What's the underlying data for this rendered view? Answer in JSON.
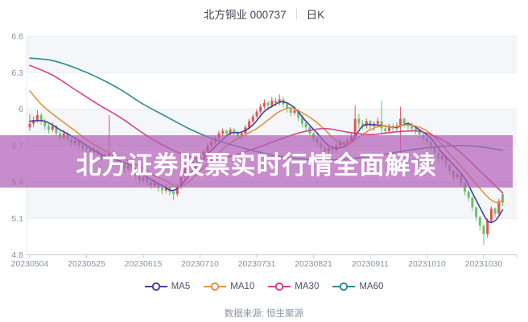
{
  "header": {
    "title": "北方铜业 000737",
    "period": "日K"
  },
  "banner": {
    "text": "北方证券股票实时行情全面解读",
    "bg": "rgba(178,98,184,0.73)",
    "text_color": "#ffffff"
  },
  "footer": {
    "source_label": "数据来源: 恒生聚源"
  },
  "chart_data": {
    "type": "candlestick",
    "title": "北方铜业 000737 日K",
    "xlabel": "",
    "ylabel": "",
    "ylim": [
      4.8,
      6.6
    ],
    "grid": true,
    "yticks": [
      6.6,
      6.3,
      6.0,
      5.7,
      5.4,
      5.1,
      4.8
    ],
    "ytick_labels": [
      "6.6",
      "6.3",
      "6",
      "5.7",
      "5.4",
      "5.1",
      "4.8"
    ],
    "xtick_labels": [
      "20230504",
      "20230525",
      "20230615",
      "20230710",
      "20230731",
      "20230821",
      "20230911",
      "20231010",
      "20231030"
    ],
    "xtick_day_indices": [
      0,
      15,
      30,
      45,
      60,
      75,
      90,
      105,
      120
    ],
    "legend_position": "bottom",
    "legend": [
      {
        "label": "MA5",
        "color": "#42429b"
      },
      {
        "label": "MA10",
        "color": "#e6933c"
      },
      {
        "label": "MA30",
        "color": "#d6418d"
      },
      {
        "label": "MA60",
        "color": "#2d8c8f"
      }
    ],
    "colors": {
      "up": "#e05555",
      "down": "#6cc16c",
      "grid": "#e8ebf2",
      "band": "#f5f6fa",
      "axis_line": "#c6cbd5",
      "axis_text": "#8b919d"
    },
    "candles": [
      [
        5.85,
        5.96,
        5.82,
        5.88
      ],
      [
        5.88,
        5.94,
        5.85,
        5.91
      ],
      [
        5.91,
        5.99,
        5.89,
        5.95
      ],
      [
        5.95,
        5.97,
        5.87,
        5.9
      ],
      [
        5.9,
        5.92,
        5.83,
        5.86
      ],
      [
        5.86,
        5.88,
        5.8,
        5.83
      ],
      [
        5.83,
        5.89,
        5.81,
        5.86
      ],
      [
        5.86,
        5.87,
        5.78,
        5.8
      ],
      [
        5.8,
        5.82,
        5.74,
        5.77
      ],
      [
        5.77,
        5.83,
        5.75,
        5.8
      ],
      [
        5.8,
        5.81,
        5.73,
        5.75
      ],
      [
        5.75,
        5.77,
        5.69,
        5.72
      ],
      [
        5.72,
        5.77,
        5.7,
        5.74
      ],
      [
        5.74,
        5.75,
        5.67,
        5.7
      ],
      [
        5.7,
        5.72,
        5.65,
        5.68
      ],
      [
        5.68,
        5.71,
        5.64,
        5.67
      ],
      [
        5.67,
        5.69,
        5.62,
        5.65
      ],
      [
        5.65,
        5.69,
        5.63,
        5.66
      ],
      [
        5.66,
        5.67,
        5.6,
        5.63
      ],
      [
        5.63,
        5.65,
        5.57,
        5.6
      ],
      [
        5.6,
        5.64,
        5.58,
        5.61
      ],
      [
        5.61,
        5.95,
        5.59,
        5.63
      ],
      [
        5.63,
        5.66,
        5.58,
        5.6
      ],
      [
        5.6,
        5.62,
        5.55,
        5.57
      ],
      [
        5.57,
        5.58,
        5.51,
        5.54
      ],
      [
        5.54,
        5.55,
        5.48,
        5.51
      ],
      [
        5.51,
        5.56,
        5.49,
        5.53
      ],
      [
        5.53,
        5.54,
        5.46,
        5.49
      ],
      [
        5.49,
        5.5,
        5.42,
        5.45
      ],
      [
        5.45,
        5.46,
        5.38,
        5.41
      ],
      [
        5.41,
        5.46,
        5.39,
        5.44
      ],
      [
        5.44,
        5.45,
        5.37,
        5.4
      ],
      [
        5.4,
        5.41,
        5.34,
        5.37
      ],
      [
        5.37,
        5.42,
        5.35,
        5.39
      ],
      [
        5.39,
        5.4,
        5.32,
        5.35
      ],
      [
        5.35,
        5.36,
        5.3,
        5.33
      ],
      [
        5.33,
        5.38,
        5.31,
        5.36
      ],
      [
        5.36,
        5.37,
        5.29,
        5.32
      ],
      [
        5.32,
        5.33,
        5.25,
        5.3
      ],
      [
        5.3,
        5.38,
        5.28,
        5.36
      ],
      [
        5.36,
        5.46,
        5.34,
        5.44
      ],
      [
        5.44,
        5.54,
        5.42,
        5.52
      ],
      [
        5.52,
        5.57,
        5.5,
        5.55
      ],
      [
        5.55,
        5.6,
        5.53,
        5.58
      ],
      [
        5.58,
        5.59,
        5.53,
        5.57
      ],
      [
        5.57,
        5.64,
        5.55,
        5.62
      ],
      [
        5.62,
        5.67,
        5.6,
        5.65
      ],
      [
        5.65,
        5.72,
        5.63,
        5.7
      ],
      [
        5.7,
        5.75,
        5.68,
        5.73
      ],
      [
        5.73,
        5.78,
        5.71,
        5.76
      ],
      [
        5.76,
        5.82,
        5.74,
        5.8
      ],
      [
        5.8,
        5.84,
        5.77,
        5.82
      ],
      [
        5.82,
        5.83,
        5.77,
        5.8
      ],
      [
        5.8,
        5.85,
        5.78,
        5.83
      ],
      [
        5.83,
        5.84,
        5.78,
        5.81
      ],
      [
        5.81,
        5.82,
        5.75,
        5.78
      ],
      [
        5.78,
        5.82,
        5.76,
        5.8
      ],
      [
        5.8,
        5.87,
        5.78,
        5.85
      ],
      [
        5.85,
        5.92,
        5.83,
        5.9
      ],
      [
        5.9,
        5.96,
        5.88,
        5.94
      ],
      [
        5.94,
        6.0,
        5.92,
        5.98
      ],
      [
        5.98,
        6.04,
        5.96,
        6.02
      ],
      [
        6.02,
        6.08,
        6.0,
        6.05
      ],
      [
        6.05,
        6.07,
        5.99,
        6.03
      ],
      [
        6.03,
        6.1,
        6.01,
        6.07
      ],
      [
        6.07,
        6.09,
        6.02,
        6.05
      ],
      [
        6.05,
        6.12,
        6.03,
        6.08
      ],
      [
        6.08,
        6.1,
        6.01,
        6.04
      ],
      [
        6.04,
        6.06,
        5.97,
        6.0
      ],
      [
        6.0,
        6.02,
        5.94,
        5.97
      ],
      [
        5.97,
        6.02,
        5.95,
        5.99
      ],
      [
        5.99,
        6.0,
        5.9,
        5.93
      ],
      [
        5.93,
        5.95,
        5.85,
        5.88
      ],
      [
        5.88,
        5.9,
        5.82,
        5.85
      ],
      [
        5.85,
        5.86,
        5.77,
        5.8
      ],
      [
        5.8,
        5.81,
        5.73,
        5.76
      ],
      [
        5.76,
        5.77,
        5.69,
        5.72
      ],
      [
        5.72,
        5.74,
        5.65,
        5.68
      ],
      [
        5.68,
        5.7,
        5.62,
        5.65
      ],
      [
        5.65,
        5.7,
        5.63,
        5.68
      ],
      [
        5.68,
        5.69,
        5.63,
        5.66
      ],
      [
        5.66,
        5.72,
        5.64,
        5.7
      ],
      [
        5.7,
        5.75,
        5.68,
        5.73
      ],
      [
        5.73,
        5.74,
        5.68,
        5.71
      ],
      [
        5.71,
        5.76,
        5.69,
        5.74
      ],
      [
        5.74,
        5.8,
        5.72,
        5.78
      ],
      [
        5.78,
        6.03,
        5.76,
        5.92
      ],
      [
        5.92,
        5.96,
        5.84,
        5.88
      ],
      [
        5.88,
        5.91,
        5.83,
        5.86
      ],
      [
        5.86,
        5.92,
        5.84,
        5.9
      ],
      [
        5.9,
        5.91,
        5.83,
        5.86
      ],
      [
        5.86,
        5.9,
        5.82,
        5.88
      ],
      [
        5.88,
        5.93,
        5.86,
        5.9
      ],
      [
        5.9,
        6.07,
        5.8,
        5.84
      ],
      [
        5.84,
        5.87,
        5.79,
        5.82
      ],
      [
        5.82,
        5.88,
        5.8,
        5.86
      ],
      [
        5.86,
        5.88,
        5.81,
        5.84
      ],
      [
        5.84,
        5.89,
        5.82,
        5.86
      ],
      [
        5.86,
        6.02,
        5.6,
        5.92
      ],
      [
        5.92,
        5.93,
        5.85,
        5.88
      ],
      [
        5.88,
        5.9,
        5.83,
        5.86
      ],
      [
        5.86,
        5.89,
        5.81,
        5.84
      ],
      [
        5.84,
        5.86,
        5.79,
        5.82
      ],
      [
        5.82,
        5.83,
        5.76,
        5.79
      ],
      [
        5.79,
        5.81,
        5.73,
        5.76
      ],
      [
        5.76,
        5.77,
        5.7,
        5.73
      ],
      [
        5.73,
        5.74,
        5.66,
        5.69
      ],
      [
        5.69,
        5.7,
        5.61,
        5.64
      ],
      [
        5.64,
        5.66,
        5.56,
        5.59
      ],
      [
        5.59,
        5.63,
        5.57,
        5.61
      ],
      [
        5.61,
        5.62,
        5.51,
        5.54
      ],
      [
        5.54,
        5.55,
        5.46,
        5.49
      ],
      [
        5.49,
        5.5,
        5.41,
        5.44
      ],
      [
        5.44,
        5.48,
        5.42,
        5.46
      ],
      [
        5.46,
        5.47,
        5.36,
        5.39
      ],
      [
        5.39,
        5.4,
        5.29,
        5.32
      ],
      [
        5.32,
        5.33,
        5.24,
        5.27
      ],
      [
        5.27,
        5.28,
        5.16,
        5.19
      ],
      [
        5.19,
        5.2,
        5.08,
        5.11
      ],
      [
        5.11,
        5.12,
        5.0,
        5.04
      ],
      [
        5.04,
        5.05,
        4.88,
        4.97
      ],
      [
        4.97,
        5.1,
        4.94,
        5.08
      ],
      [
        5.08,
        5.2,
        5.06,
        5.18
      ],
      [
        5.18,
        5.19,
        5.11,
        5.14
      ],
      [
        5.14,
        5.26,
        5.12,
        5.24
      ],
      [
        5.3,
        5.32,
        5.2,
        5.23
      ]
    ],
    "ma_lines": [
      {
        "name": "MA5",
        "color": "#42429b",
        "anchors": [
          [
            0,
            5.9
          ],
          [
            4,
            5.9
          ],
          [
            8,
            5.83
          ],
          [
            12,
            5.76
          ],
          [
            16,
            5.68
          ],
          [
            20,
            5.61
          ],
          [
            24,
            5.57
          ],
          [
            27,
            5.53
          ],
          [
            31,
            5.44
          ],
          [
            35,
            5.37
          ],
          [
            38,
            5.33
          ],
          [
            41,
            5.41
          ],
          [
            44,
            5.53
          ],
          [
            47,
            5.63
          ],
          [
            50,
            5.72
          ],
          [
            53,
            5.8
          ],
          [
            56,
            5.81
          ],
          [
            59,
            5.87
          ],
          [
            62,
            5.98
          ],
          [
            65,
            6.04
          ],
          [
            67,
            6.06
          ],
          [
            70,
            6.01
          ],
          [
            73,
            5.9
          ],
          [
            76,
            5.8
          ],
          [
            79,
            5.7
          ],
          [
            82,
            5.68
          ],
          [
            85,
            5.73
          ],
          [
            88,
            5.86
          ],
          [
            91,
            5.87
          ],
          [
            94,
            5.86
          ],
          [
            97,
            5.85
          ],
          [
            100,
            5.88
          ],
          [
            103,
            5.83
          ],
          [
            106,
            5.76
          ],
          [
            109,
            5.64
          ],
          [
            112,
            5.54
          ],
          [
            115,
            5.43
          ],
          [
            117,
            5.31
          ],
          [
            119,
            5.19
          ],
          [
            121,
            5.08
          ],
          [
            123,
            5.08
          ],
          [
            125,
            5.17
          ]
        ]
      },
      {
        "name": "MA10",
        "color": "#e6933c",
        "anchors": [
          [
            0,
            6.15
          ],
          [
            3,
            6.04
          ],
          [
            6,
            5.96
          ],
          [
            9,
            5.89
          ],
          [
            12,
            5.82
          ],
          [
            15,
            5.75
          ],
          [
            18,
            5.69
          ],
          [
            21,
            5.64
          ],
          [
            24,
            5.6
          ],
          [
            27,
            5.56
          ],
          [
            30,
            5.51
          ],
          [
            33,
            5.45
          ],
          [
            36,
            5.41
          ],
          [
            39,
            5.36
          ],
          [
            42,
            5.4
          ],
          [
            45,
            5.49
          ],
          [
            48,
            5.58
          ],
          [
            51,
            5.67
          ],
          [
            54,
            5.74
          ],
          [
            57,
            5.79
          ],
          [
            60,
            5.84
          ],
          [
            63,
            5.91
          ],
          [
            66,
            5.98
          ],
          [
            69,
            6.01
          ],
          [
            72,
            5.97
          ],
          [
            75,
            5.91
          ],
          [
            78,
            5.83
          ],
          [
            81,
            5.74
          ],
          [
            84,
            5.71
          ],
          [
            87,
            5.77
          ],
          [
            90,
            5.83
          ],
          [
            93,
            5.86
          ],
          [
            96,
            5.85
          ],
          [
            99,
            5.87
          ],
          [
            102,
            5.86
          ],
          [
            105,
            5.82
          ],
          [
            108,
            5.74
          ],
          [
            111,
            5.63
          ],
          [
            114,
            5.53
          ],
          [
            117,
            5.42
          ],
          [
            120,
            5.31
          ],
          [
            122,
            5.25
          ],
          [
            124,
            5.23
          ],
          [
            125,
            5.26
          ]
        ]
      },
      {
        "name": "MA30",
        "color": "#d6418d",
        "anchors": [
          [
            0,
            6.36
          ],
          [
            6,
            6.28
          ],
          [
            12,
            6.16
          ],
          [
            18,
            6.04
          ],
          [
            24,
            5.93
          ],
          [
            30,
            5.8
          ],
          [
            36,
            5.69
          ],
          [
            42,
            5.61
          ],
          [
            48,
            5.58
          ],
          [
            54,
            5.62
          ],
          [
            60,
            5.68
          ],
          [
            66,
            5.75
          ],
          [
            72,
            5.81
          ],
          [
            78,
            5.84
          ],
          [
            84,
            5.81
          ],
          [
            90,
            5.79
          ],
          [
            96,
            5.81
          ],
          [
            102,
            5.82
          ],
          [
            106,
            5.79
          ],
          [
            110,
            5.73
          ],
          [
            114,
            5.64
          ],
          [
            118,
            5.52
          ],
          [
            121,
            5.43
          ],
          [
            123,
            5.37
          ],
          [
            125,
            5.31
          ]
        ]
      },
      {
        "name": "MA60",
        "color": "#2d8c8f",
        "anchors": [
          [
            0,
            6.42
          ],
          [
            6,
            6.4
          ],
          [
            12,
            6.34
          ],
          [
            18,
            6.26
          ],
          [
            24,
            6.16
          ],
          [
            30,
            6.04
          ],
          [
            36,
            5.94
          ],
          [
            42,
            5.84
          ],
          [
            48,
            5.76
          ],
          [
            54,
            5.7
          ],
          [
            60,
            5.65
          ],
          [
            66,
            5.61
          ],
          [
            72,
            5.59
          ],
          [
            78,
            5.58
          ],
          [
            84,
            5.59
          ],
          [
            90,
            5.61
          ],
          [
            96,
            5.64
          ],
          [
            102,
            5.67
          ],
          [
            108,
            5.69
          ],
          [
            114,
            5.7
          ],
          [
            119,
            5.69
          ],
          [
            125,
            5.66
          ]
        ]
      }
    ]
  }
}
